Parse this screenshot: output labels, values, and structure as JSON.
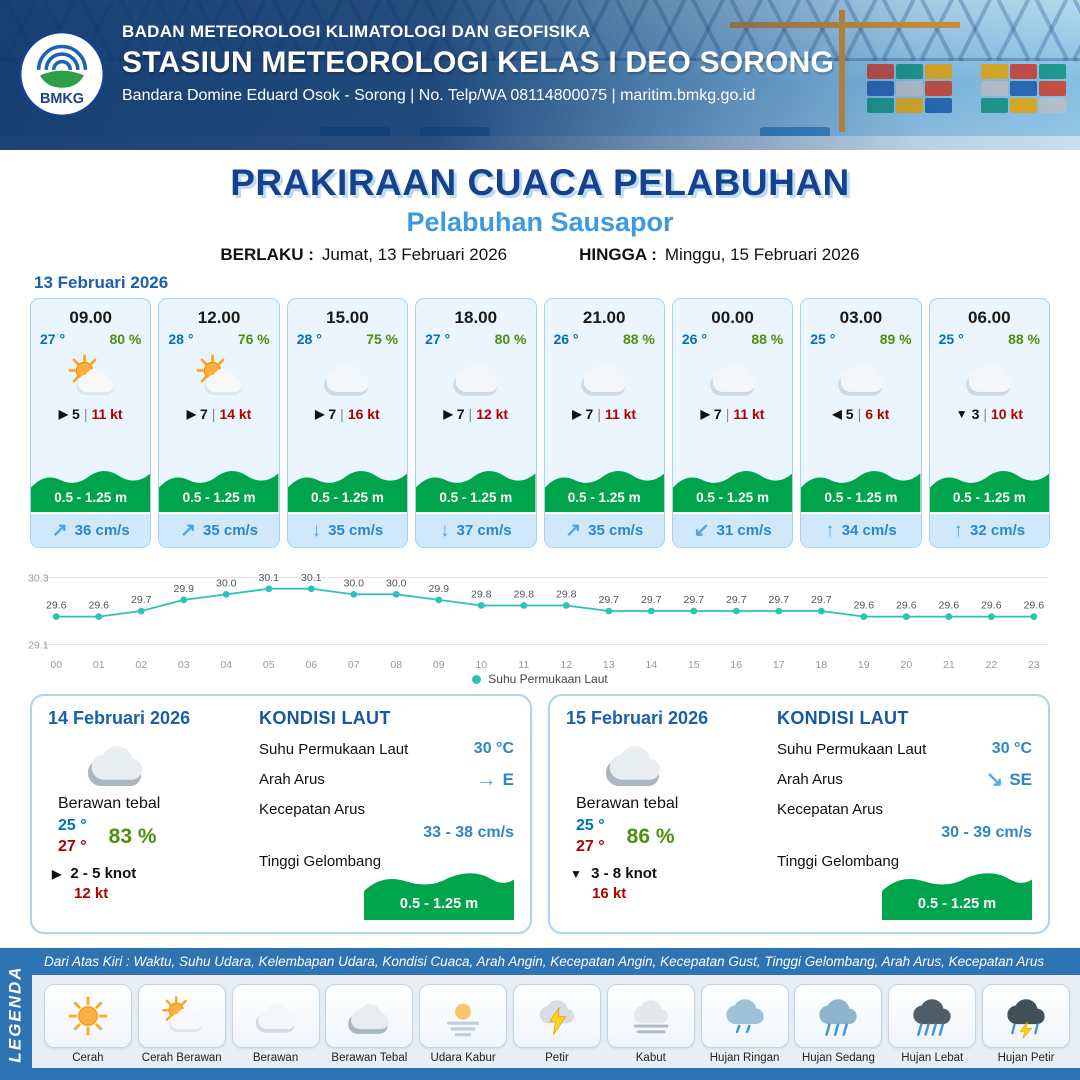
{
  "header": {
    "logo_label": "BMKG",
    "agency": "BADAN METEOROLOGI KLIMATOLOGI DAN GEOFISIKA",
    "station": "STASIUN METEOROLOGI KELAS I DEO SORONG",
    "contact": "Bandara Domine Eduard Osok - Sorong | No. Telp/WA 08114800075 | maritim.bmkg.go.id"
  },
  "title": {
    "main": "PRAKIRAAN CUACA PELABUHAN",
    "subtitle": "Pelabuhan Sausapor",
    "valid_label": "BERLAKU :",
    "valid_value": "Jumat, 13 Februari 2026",
    "until_label": "HINGGA :",
    "until_value": "Minggu, 15 Februari 2026"
  },
  "forecast": {
    "date": "13 Februari 2026",
    "divider": "|",
    "cards": [
      {
        "time": "09.00",
        "temp": "27 °",
        "humidity": "80 %",
        "icon": "cerah-berawan",
        "wind_arrow": "▶",
        "wind": "5",
        "gust": "11 kt",
        "wave": "0.5 - 1.25 m",
        "current_arrow": "↗",
        "current": "36 cm/s"
      },
      {
        "time": "12.00",
        "temp": "28 °",
        "humidity": "76 %",
        "icon": "cerah-berawan",
        "wind_arrow": "▶",
        "wind": "7",
        "gust": "14 kt",
        "wave": "0.5 - 1.25 m",
        "current_arrow": "↗",
        "current": "35 cm/s"
      },
      {
        "time": "15.00",
        "temp": "28 °",
        "humidity": "75 %",
        "icon": "berawan",
        "wind_arrow": "▶",
        "wind": "7",
        "gust": "16 kt",
        "wave": "0.5 - 1.25 m",
        "current_arrow": "↓",
        "current": "35 cm/s"
      },
      {
        "time": "18.00",
        "temp": "27 °",
        "humidity": "80 %",
        "icon": "berawan",
        "wind_arrow": "▶",
        "wind": "7",
        "gust": "12 kt",
        "wave": "0.5 - 1.25 m",
        "current_arrow": "↓",
        "current": "37 cm/s"
      },
      {
        "time": "21.00",
        "temp": "26 °",
        "humidity": "88 %",
        "icon": "berawan",
        "wind_arrow": "▶",
        "wind": "7",
        "gust": "11 kt",
        "wave": "0.5 - 1.25 m",
        "current_arrow": "↗",
        "current": "35 cm/s"
      },
      {
        "time": "00.00",
        "temp": "26 °",
        "humidity": "88 %",
        "icon": "berawan",
        "wind_arrow": "▶",
        "wind": "7",
        "gust": "11 kt",
        "wave": "0.5 - 1.25 m",
        "current_arrow": "↙",
        "current": "31 cm/s"
      },
      {
        "time": "03.00",
        "temp": "25 °",
        "humidity": "89 %",
        "icon": "berawan",
        "wind_arrow": "◀",
        "wind": "5",
        "gust": "6 kt",
        "wave": "0.5 - 1.25 m",
        "current_arrow": "↑",
        "current": "34 cm/s"
      },
      {
        "time": "06.00",
        "temp": "25 °",
        "humidity": "88 %",
        "icon": "berawan",
        "wind_arrow": "▼",
        "wind": "3",
        "gust": "10 kt",
        "wave": "0.5 - 1.25 m",
        "current_arrow": "↑",
        "current": "32 cm/s"
      }
    ]
  },
  "chart_data": {
    "type": "line",
    "title": "",
    "series_name": "Suhu Permukaan Laut",
    "x": [
      "00",
      "01",
      "02",
      "03",
      "04",
      "05",
      "06",
      "07",
      "08",
      "09",
      "10",
      "11",
      "12",
      "13",
      "14",
      "15",
      "16",
      "17",
      "18",
      "19",
      "20",
      "21",
      "22",
      "23"
    ],
    "values": [
      29.6,
      29.6,
      29.7,
      29.9,
      30.0,
      30.1,
      30.1,
      30.0,
      30.0,
      29.9,
      29.8,
      29.8,
      29.8,
      29.7,
      29.7,
      29.7,
      29.7,
      29.7,
      29.7,
      29.6,
      29.6,
      29.6,
      29.6,
      29.6
    ],
    "ylim": [
      29.1,
      30.3
    ],
    "line_color": "#2cc3b4",
    "legend_position": "bottom",
    "grid": "minimal"
  },
  "days": [
    {
      "date": "14 Februari 2026",
      "icon": "berawan-tebal",
      "condition": "Berawan tebal",
      "temp_min": "25 °",
      "temp_max": "27 °",
      "humidity": "83 %",
      "wind_arrow": "▶",
      "wind": "2 - 5 knot",
      "gust": "12 kt",
      "sea": {
        "title": "KONDISI LAUT",
        "sst_label": "Suhu Permukaan Laut",
        "sst": "30 °C",
        "current_dir_label": "Arah Arus",
        "current_arrow": "→",
        "current_dir": "E",
        "current_speed_label": "Kecepatan Arus",
        "current_speed": "33 - 38 cm/s",
        "wave_label": "Tinggi Gelombang",
        "wave": "0.5 - 1.25 m"
      }
    },
    {
      "date": "15 Februari 2026",
      "icon": "berawan-tebal",
      "condition": "Berawan tebal",
      "temp_min": "25 °",
      "temp_max": "27 °",
      "humidity": "86 %",
      "wind_arrow": "▼",
      "wind": "3 - 8 knot",
      "gust": "16 kt",
      "sea": {
        "title": "KONDISI LAUT",
        "sst_label": "Suhu Permukaan Laut",
        "sst": "30 °C",
        "current_dir_label": "Arah Arus",
        "current_arrow": "↘",
        "current_dir": "SE",
        "current_speed_label": "Kecepatan Arus",
        "current_speed": "30 - 39 cm/s",
        "wave_label": "Tinggi Gelombang",
        "wave": "0.5 - 1.25 m"
      }
    }
  ],
  "legend": {
    "title": "LEGENDA",
    "info": "Dari Atas Kiri : Waktu, Suhu Udara, Kelembapan Udara, Kondisi Cuaca, Arah Angin, Kecepatan Angin, Kecepatan Gust, Tinggi Gelombang, Arah Arus, Kecepatan Arus",
    "items": [
      {
        "label": "Cerah",
        "icon": "cerah"
      },
      {
        "label": "Cerah Berawan",
        "icon": "cerah-berawan"
      },
      {
        "label": "Berawan",
        "icon": "berawan"
      },
      {
        "label": "Berawan Tebal",
        "icon": "berawan-tebal"
      },
      {
        "label": "Udara Kabur",
        "icon": "udara-kabur"
      },
      {
        "label": "Petir",
        "icon": "petir"
      },
      {
        "label": "Kabut",
        "icon": "kabut"
      },
      {
        "label": "Hujan Ringan",
        "icon": "hujan-ringan"
      },
      {
        "label": "Hujan Sedang",
        "icon": "hujan-sedang"
      },
      {
        "label": "Hujan Lebat",
        "icon": "hujan-lebat"
      },
      {
        "label": "Hujan Petir",
        "icon": "hujan-petir"
      }
    ]
  },
  "colors": {
    "accent_blue": "#2e74b5",
    "dark_blue_title": "#16418f",
    "subtitle_blue": "#3d9ae1",
    "wave_green": "#00a44a",
    "temp_blue": "#0070c0",
    "temp_red": "#b00000",
    "humidity_green": "#4e8f0e",
    "chart_teal": "#2cc3b4"
  }
}
